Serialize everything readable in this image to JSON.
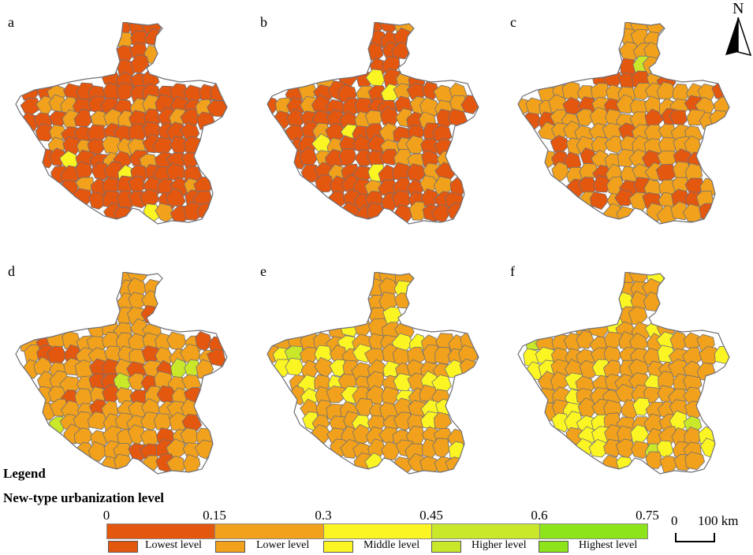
{
  "panels": [
    {
      "label": "a",
      "base": "lowest",
      "mix": "lower"
    },
    {
      "label": "b",
      "base": "lowest",
      "mix": "lower"
    },
    {
      "label": "c",
      "base": "lower",
      "mix": "lowest"
    },
    {
      "label": "d",
      "base": "lower",
      "mix": "lowest"
    },
    {
      "label": "e",
      "base": "lower",
      "mix": "middle"
    },
    {
      "label": "f",
      "base": "lower",
      "mix": "middle"
    }
  ],
  "colors": {
    "lowest": "#e4570e",
    "lower": "#f1a11b",
    "middle": "#fbf523",
    "higher": "#c9e82a",
    "highest": "#8ee41a",
    "border": "#6f6f76"
  },
  "legend": {
    "title": "Legend",
    "subtitle": "New-type urbanization level",
    "ticks": [
      "0",
      "0.15",
      "0.3",
      "0.45",
      "0.6",
      "0.75"
    ],
    "classes": [
      {
        "label": "Lowest level",
        "key": "lowest"
      },
      {
        "label": "Lower level",
        "key": "lower"
      },
      {
        "label": "Middle level",
        "key": "middle"
      },
      {
        "label": "Higher level",
        "key": "higher"
      },
      {
        "label": "Highest level",
        "key": "highest"
      }
    ]
  },
  "north_arrow": {
    "label": "N"
  },
  "scale_bar": {
    "start": "0",
    "end": "100 km"
  }
}
